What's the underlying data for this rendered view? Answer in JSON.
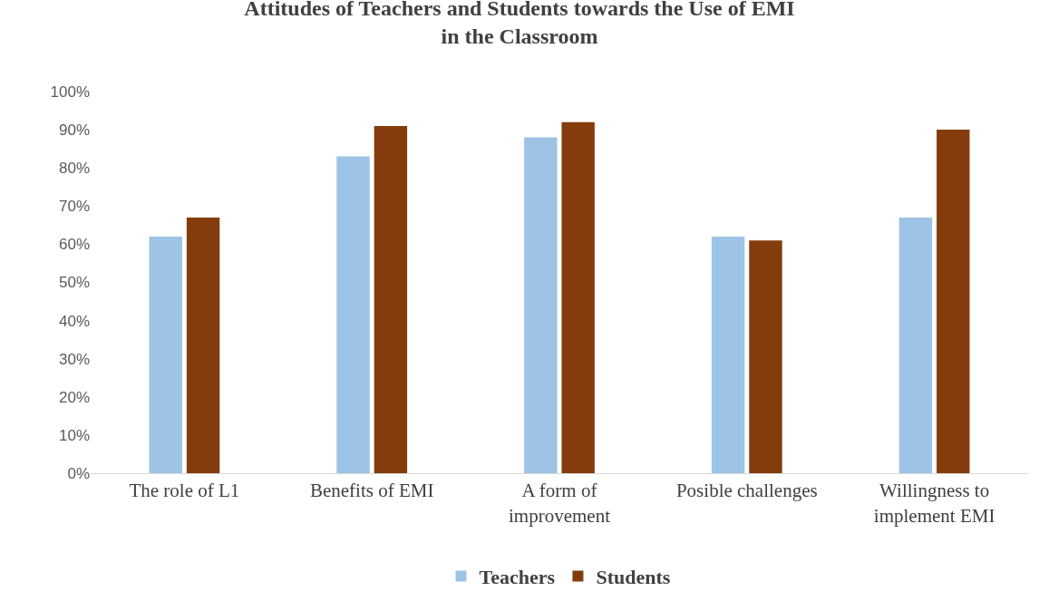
{
  "chart_data": {
    "type": "bar",
    "title": "Attitudes of Teachers and Students towards the Use of EMI\nin the Classroom",
    "categories": [
      "The role of L1",
      "Benefits of EMI",
      "A form of improvement",
      "Posible challenges",
      "Willingness to implement EMI"
    ],
    "series": [
      {
        "name": "Teachers",
        "color": "#9dc3e6",
        "values": [
          62,
          83,
          88,
          62,
          67
        ]
      },
      {
        "name": "Students",
        "color": "#843c0c",
        "values": [
          67,
          91,
          92,
          61,
          90
        ]
      }
    ],
    "ylim": [
      0,
      100
    ],
    "yticks": [
      {
        "value": 0,
        "label": "0%"
      },
      {
        "value": 10,
        "label": "10%"
      },
      {
        "value": 20,
        "label": "20%"
      },
      {
        "value": 30,
        "label": "30%"
      },
      {
        "value": 40,
        "label": "40%"
      },
      {
        "value": 50,
        "label": "50%"
      },
      {
        "value": 60,
        "label": "60%"
      },
      {
        "value": 70,
        "label": "70%"
      },
      {
        "value": 80,
        "label": "80%"
      },
      {
        "value": 90,
        "label": "90%"
      },
      {
        "value": 100,
        "label": "100%"
      }
    ],
    "legend": "bottom"
  }
}
